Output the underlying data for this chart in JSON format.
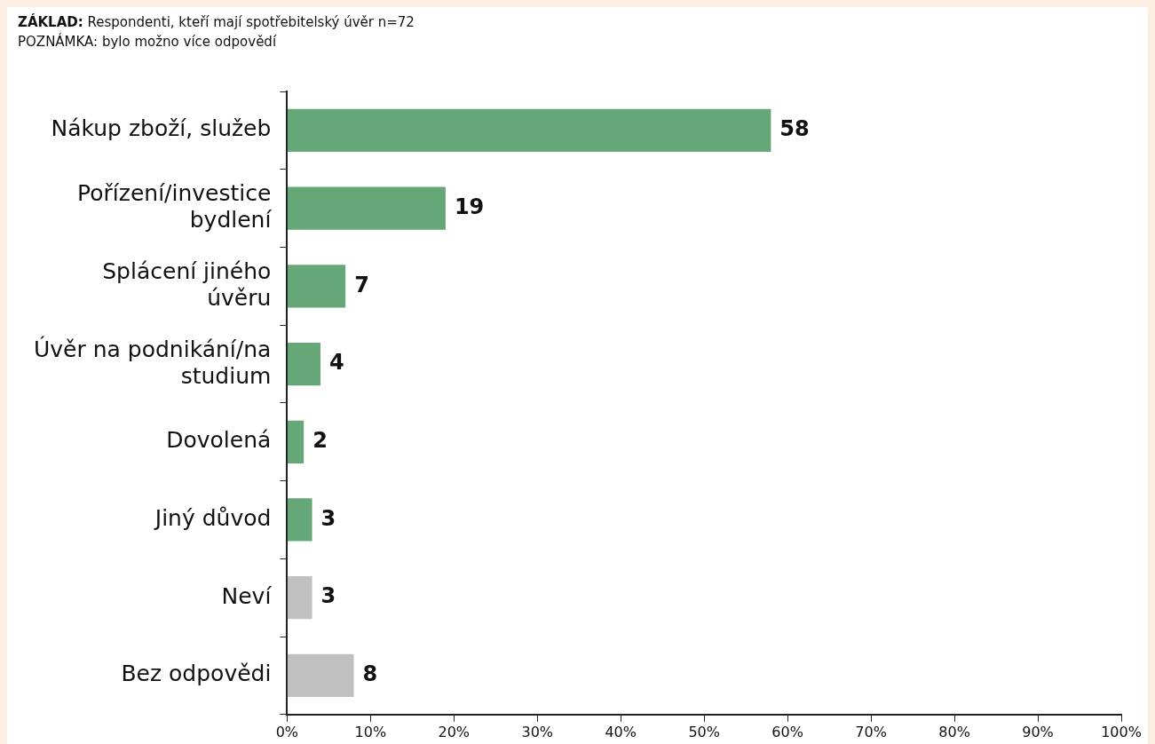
{
  "chart_data": {
    "type": "bar",
    "orientation": "horizontal",
    "annotations": [
      "ZÁKLAD: Respondenti, kteří mají spotřebitelský úvěr n=72",
      "POZNÁMKA: bylo možno více odpovědí"
    ],
    "categories": [
      "Nákup zboží, služeb",
      "Pořízení/investice bydlení",
      "Splácení jiného úvěru",
      "Úvěr na podnikání/na studium",
      "Dovolená",
      "Jiný důvod",
      "Neví",
      "Bez odpovědi"
    ],
    "values": [
      58,
      19,
      7,
      4,
      2,
      3,
      3,
      8
    ],
    "colors": [
      "#66a777",
      "#66a777",
      "#66a777",
      "#66a777",
      "#66a777",
      "#66a777",
      "#c0c0c0",
      "#c0c0c0"
    ],
    "data_labels": true,
    "xlim": [
      0,
      100
    ],
    "xticks": [
      {
        "value": 0,
        "label": "0%"
      },
      {
        "value": 10,
        "label": "10%"
      },
      {
        "value": 20,
        "label": "20%"
      },
      {
        "value": 30,
        "label": "30%"
      },
      {
        "value": 40,
        "label": "40%"
      },
      {
        "value": 50,
        "label": "50%"
      },
      {
        "value": 60,
        "label": "60%"
      },
      {
        "value": 70,
        "label": "70%"
      },
      {
        "value": 80,
        "label": "80%"
      },
      {
        "value": 90,
        "label": "90%"
      },
      {
        "value": 100,
        "label": "100%"
      }
    ],
    "grid": false,
    "legend": false
  }
}
